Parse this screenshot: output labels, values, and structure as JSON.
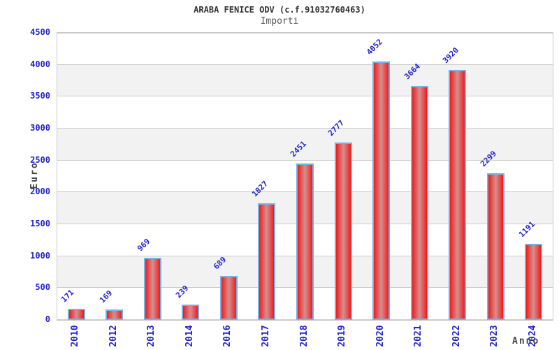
{
  "title": "ARABA FENICE ODV (c.f.91032760463)",
  "subtitle": "Importi",
  "chart_data": {
    "type": "bar",
    "title": "ARABA FENICE ODV (c.f.91032760463)",
    "subtitle": "Importi",
    "xlabel": "Anno",
    "ylabel": "Euro",
    "categories": [
      "2010",
      "2012",
      "2013",
      "2014",
      "2016",
      "2017",
      "2018",
      "2019",
      "2020",
      "2021",
      "2022",
      "2023",
      "2024"
    ],
    "values": [
      171,
      169,
      969,
      239,
      689,
      1827,
      2451,
      2777,
      4052,
      3664,
      3920,
      2299,
      1191
    ],
    "ylim": [
      0,
      4500
    ],
    "ytick_step": 500,
    "grid": "horizontal-alternating-bands",
    "legend": "none",
    "bar_value_labels_rotation_deg": -45,
    "x_tick_rotation_deg": -90
  },
  "colors": {
    "label_blue": "#2323cc",
    "title_text": "#333333",
    "subtitle_text": "#555555",
    "axis_title_text": "#444444",
    "bar_edge_red": "#e81a1a",
    "bar_bright_red": "#ee3333",
    "bar_center_pink": "#d29090",
    "bar_border_blue": "#79b1e3",
    "band_gray": "#f2f2f2",
    "grid_gray": "#cccccc",
    "background": "#ffffff"
  }
}
